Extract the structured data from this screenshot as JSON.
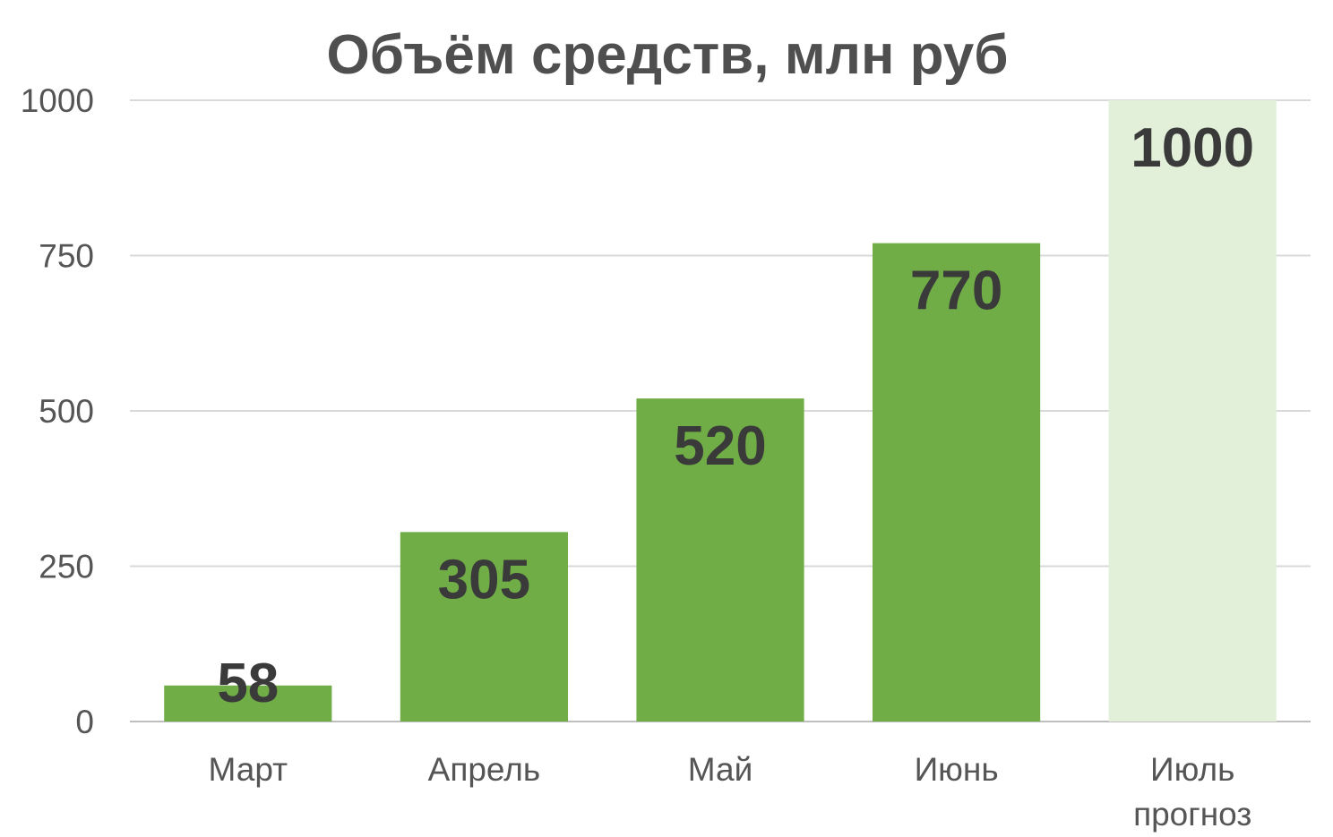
{
  "chart_data": {
    "type": "bar",
    "title": "Объём средств, млн руб",
    "categories": [
      [
        "Март"
      ],
      [
        "Апрель"
      ],
      [
        "Май"
      ],
      [
        "Июнь"
      ],
      [
        "Июль",
        "прогноз"
      ]
    ],
    "values": [
      58,
      305,
      520,
      770,
      1000
    ],
    "data_labels": [
      "58",
      "305",
      "520",
      "770",
      "1000"
    ],
    "bar_status": [
      "actual",
      "actual",
      "actual",
      "actual",
      "forecast"
    ],
    "ylim": [
      0,
      1000
    ],
    "yticks": [
      0,
      250,
      500,
      750,
      1000
    ],
    "ytick_labels": [
      "0",
      "250",
      "500",
      "750",
      "1000"
    ],
    "grid": true,
    "legend": "none",
    "colors": {
      "actual": "#70ad47",
      "forecast": "#e2efd9",
      "grid": "#d9d9d9",
      "axis": "#bfbfbf",
      "title": "#4f4f4f",
      "tick_text": "#555555",
      "data_label": "#3a3a3a"
    }
  }
}
